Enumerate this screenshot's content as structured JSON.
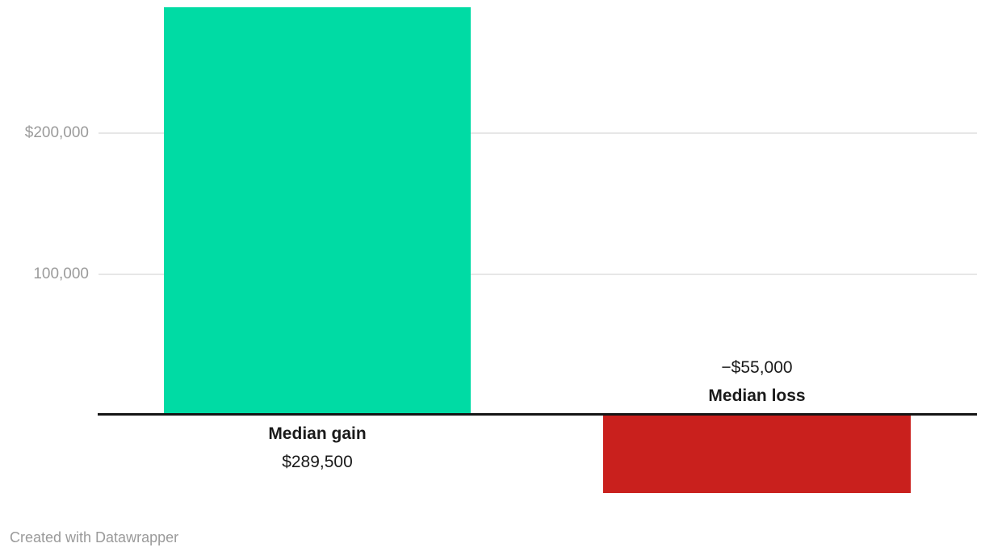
{
  "chart_data": {
    "type": "bar",
    "categories": [
      "Median gain",
      "Median loss"
    ],
    "values": [
      289500,
      -55000
    ],
    "value_labels": [
      "$289,500",
      "−$55,000"
    ],
    "title": "",
    "xlabel": "",
    "ylabel": "",
    "ylim": [
      -55000,
      289500
    ],
    "yticks": [
      {
        "value": 200000,
        "label": "$200,000"
      },
      {
        "value": 100000,
        "label": "100,000"
      }
    ],
    "grid": true,
    "legend": "none",
    "bar_colors": [
      "#00dba4",
      "#c9201d"
    ]
  },
  "colors": {
    "positive_bar": "#00dba4",
    "negative_bar": "#c9201d",
    "axis_text": "#9b9b9b",
    "gridline": "#e7e7e7",
    "baseline": "#151515",
    "label_text": "#1a1a1a",
    "footer_text": "#9a9a9a",
    "background": "#ffffff"
  },
  "footer": {
    "credit": "Created with Datawrapper"
  }
}
